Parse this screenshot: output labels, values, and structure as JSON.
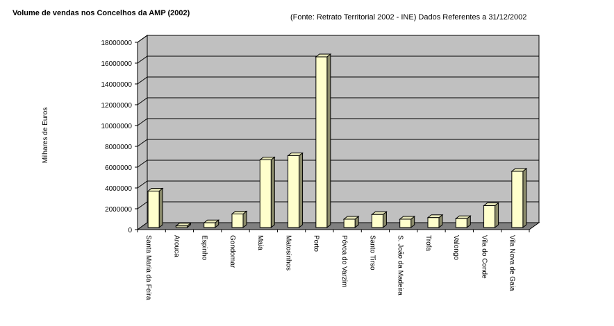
{
  "chart_data": {
    "type": "bar",
    "title": "Volume de vendas nos Concelhos da AMP (2002)",
    "subtitle": "(Fonte: Retrato Territorial 2002 - INE) Dados Referentes a 31/12/2002",
    "xlabel": "",
    "ylabel": "Milhares de Euros",
    "ylim": [
      0,
      18000000
    ],
    "yticks": [
      "0",
      "2000000",
      "4000000",
      "6000000",
      "8000000",
      "10000000",
      "12000000",
      "14000000",
      "16000000",
      "18000000"
    ],
    "grid": true,
    "categories": [
      "Santa Maria da Feira",
      "Arouca",
      "Espinho",
      "Gondomar",
      "Maia",
      "Matosinhos",
      "Porto",
      "Póvoa do Varzim",
      "Santo Tirso",
      "S. João da Madeira",
      "Trofa",
      "Valongo",
      "Vila do Conde",
      "Vila Nova de Gaia"
    ],
    "values": [
      3500000,
      150000,
      450000,
      1300000,
      6500000,
      6900000,
      16400000,
      800000,
      1250000,
      800000,
      950000,
      850000,
      2100000,
      5400000
    ],
    "colors": {
      "bar_front": "#ffffcc",
      "bar_side": "#8a8a6a",
      "bar_top": "#e6e6b8",
      "plot_bg": "#c0c0c0",
      "floor": "#808080",
      "grid": "#000000"
    }
  }
}
